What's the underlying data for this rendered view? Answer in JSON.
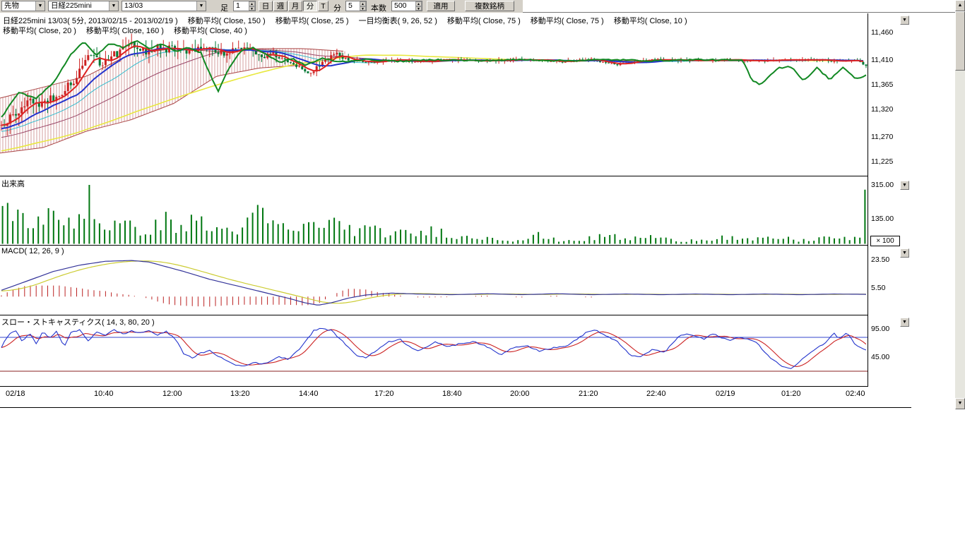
{
  "ui": {
    "toolbar": {
      "market_select": "先物",
      "symbol_select": "日経225mini",
      "contract_select": "13/03",
      "bar_type_label": "足",
      "bar_interval_value": "1",
      "period_buttons": [
        "日",
        "週",
        "月",
        "分",
        "T"
      ],
      "minute_label": "分",
      "minute_value": "5",
      "bars_label": "本数",
      "bars_value": "500",
      "apply_button": "適用",
      "multi_symbol_button": "複数銘柄"
    },
    "legend_line1": [
      "日経225mini 13/03( 5分, 2013/02/15 - 2013/02/19 )",
      "移動平均( Close, 150 )",
      "移動平均( Close, 25 )",
      "一目均衡表( 9, 26, 52 )",
      "移動平均( Close, 75 )",
      "移動平均( Close, 75 )",
      "移動平均( Close, 10 )"
    ],
    "legend_line2": [
      "移動平均( Close, 20 )",
      "移動平均( Close, 160 )",
      "移動平均( Close, 40 )"
    ],
    "price_axis_labels": [
      "11,460",
      "11,410",
      "11,365",
      "11,320",
      "11,270",
      "11,225"
    ],
    "volume_panel": {
      "title": "出来高",
      "axis_labels": [
        "315.00",
        "135.00"
      ],
      "multiplier_badge": "× 100"
    },
    "macd_panel": {
      "title": "MACD( 12, 26, 9 )",
      "axis_labels": [
        "23.50",
        "5.50"
      ]
    },
    "stoch_panel": {
      "title": "スロー・ストキャスティクス( 14, 3, 80, 20 )",
      "axis_labels": [
        "95.00",
        "45.00"
      ]
    },
    "x_axis_labels": [
      "02/18",
      "10:40",
      "12:00",
      "13:20",
      "14:40",
      "17:20",
      "18:40",
      "20:00",
      "21:20",
      "22:40",
      "02/19",
      "01:20",
      "02:40"
    ]
  },
  "icons": {
    "combo_arrow": "▼",
    "spinner_up": "▲",
    "spinner_down": "▼",
    "panel_dropdown_arrow": "▼",
    "scroll_up_arrow": "▲",
    "scroll_down_arrow": "▼"
  },
  "colors": {
    "candle_up": "#cc2222",
    "candle_down": "#007733",
    "ma10": "#dd2222",
    "ma25": "#2233cc",
    "ma40": "#33bbcc",
    "ma75": "#994466",
    "ma150": "#e8e840",
    "chikou": "#118822",
    "cloud": "#aa4444",
    "volume": "#007711",
    "macd": "#333399",
    "macd_signal": "#cccc33",
    "macd_hist": "#bb2222",
    "stoch_k": "#2233cc",
    "stoch_d": "#cc2222",
    "stoch_high_line": "#3344cc",
    "stoch_low_line": "#882222"
  },
  "chart_data": [
    {
      "type": "candlestick",
      "title": "日経225mini 13/03( 5分, 2013/02/15 - 2013/02/19 )",
      "ylim": [
        11200,
        11480
      ],
      "yticks": [
        11460,
        11410,
        11365,
        11320,
        11270,
        11225
      ],
      "x_labels": [
        "02/18",
        "10:40",
        "12:00",
        "13:20",
        "14:40",
        "17:20",
        "18:40",
        "20:00",
        "21:20",
        "22:40",
        "02/19",
        "01:20",
        "02:40"
      ],
      "close_anchors": [
        [
          -0.4,
          11150
        ],
        [
          -0.3,
          11205
        ],
        [
          -0.2,
          11235
        ],
        [
          -0.1,
          11262
        ],
        [
          0,
          11292
        ],
        [
          0.015,
          11310
        ],
        [
          0.03,
          11335
        ],
        [
          0.05,
          11330
        ],
        [
          0.07,
          11352
        ],
        [
          0.085,
          11375
        ],
        [
          0.095,
          11408
        ],
        [
          0.105,
          11428
        ],
        [
          0.115,
          11402
        ],
        [
          0.13,
          11418
        ],
        [
          0.15,
          11438
        ],
        [
          0.165,
          11425
        ],
        [
          0.18,
          11432
        ],
        [
          0.2,
          11428
        ],
        [
          0.215,
          11420
        ],
        [
          0.23,
          11435
        ],
        [
          0.245,
          11428
        ],
        [
          0.26,
          11420
        ],
        [
          0.275,
          11432
        ],
        [
          0.29,
          11428
        ],
        [
          0.3,
          11415
        ],
        [
          0.315,
          11420
        ],
        [
          0.33,
          11408
        ],
        [
          0.345,
          11395
        ],
        [
          0.355,
          11385
        ],
        [
          0.365,
          11398
        ],
        [
          0.375,
          11410
        ],
        [
          0.385,
          11425
        ],
        [
          0.395,
          11412
        ],
        [
          0.41,
          11408
        ],
        [
          0.43,
          11406
        ],
        [
          0.45,
          11410
        ],
        [
          0.48,
          11407
        ],
        [
          0.52,
          11410
        ],
        [
          0.56,
          11408
        ],
        [
          0.6,
          11410
        ],
        [
          0.64,
          11407
        ],
        [
          0.68,
          11410
        ],
        [
          0.71,
          11400
        ],
        [
          0.73,
          11408
        ],
        [
          0.76,
          11410
        ],
        [
          0.8,
          11408
        ],
        [
          0.84,
          11410
        ],
        [
          0.88,
          11408
        ],
        [
          0.92,
          11410
        ],
        [
          0.96,
          11408
        ],
        [
          0.985,
          11410
        ],
        [
          1,
          11396
        ]
      ],
      "volatility_anchors": [
        [
          -0.4,
          8
        ],
        [
          0,
          10
        ],
        [
          0.2,
          9
        ],
        [
          0.3,
          7
        ],
        [
          0.36,
          5
        ],
        [
          0.42,
          3
        ],
        [
          0.55,
          2.4
        ],
        [
          1,
          2.2
        ]
      ],
      "green_line_anchors": [
        [
          0,
          11305
        ],
        [
          0.02,
          11350
        ],
        [
          0.04,
          11340
        ],
        [
          0.06,
          11368
        ],
        [
          0.08,
          11420
        ],
        [
          0.095,
          11442
        ],
        [
          0.11,
          11418
        ],
        [
          0.125,
          11440
        ],
        [
          0.14,
          11432
        ],
        [
          0.155,
          11445
        ],
        [
          0.17,
          11430
        ],
        [
          0.185,
          11440
        ],
        [
          0.2,
          11425
        ],
        [
          0.215,
          11432
        ],
        [
          0.23,
          11422
        ],
        [
          0.24,
          11385
        ],
        [
          0.25,
          11352
        ],
        [
          0.26,
          11388
        ],
        [
          0.275,
          11425
        ],
        [
          0.29,
          11432
        ],
        [
          0.305,
          11420
        ],
        [
          0.32,
          11405
        ],
        [
          0.335,
          11412
        ],
        [
          0.35,
          11400
        ],
        [
          0.37,
          11412
        ],
        [
          0.39,
          11406
        ],
        [
          0.42,
          11410
        ],
        [
          0.46,
          11407
        ],
        [
          0.5,
          11410
        ],
        [
          0.55,
          11408
        ],
        [
          0.6,
          11410
        ],
        [
          0.65,
          11408
        ],
        [
          0.7,
          11410
        ],
        [
          0.75,
          11408
        ],
        [
          0.8,
          11410
        ],
        [
          0.84,
          11409
        ],
        [
          0.855,
          11408
        ],
        [
          0.865,
          11372
        ],
        [
          0.875,
          11365
        ],
        [
          0.885,
          11380
        ],
        [
          0.895,
          11395
        ],
        [
          0.91,
          11397
        ],
        [
          0.925,
          11372
        ],
        [
          0.94,
          11395
        ],
        [
          0.955,
          11374
        ],
        [
          0.97,
          11396
        ],
        [
          0.985,
          11374
        ],
        [
          1,
          11384
        ]
      ],
      "ichimoku_spanA": [
        [
          0,
          11340
        ],
        [
          0.05,
          11360
        ],
        [
          0.1,
          11380
        ],
        [
          0.15,
          11420
        ],
        [
          0.2,
          11430
        ],
        [
          0.25,
          11425
        ],
        [
          0.3,
          11430
        ],
        [
          0.35,
          11430
        ],
        [
          0.4,
          11425
        ]
      ],
      "ichimoku_spanB": [
        [
          0,
          11240
        ],
        [
          0.05,
          11250
        ],
        [
          0.1,
          11280
        ],
        [
          0.15,
          11300
        ],
        [
          0.2,
          11330
        ],
        [
          0.25,
          11380
        ],
        [
          0.3,
          11395
        ],
        [
          0.35,
          11400
        ],
        [
          0.4,
          11420
        ]
      ]
    },
    {
      "type": "bar",
      "title": "出来高",
      "unit_multiplier": "× 100",
      "yticks": [
        315,
        135
      ],
      "volume_anchors": [
        [
          0,
          200
        ],
        [
          0.01,
          260
        ],
        [
          0.02,
          150
        ],
        [
          0.03,
          140
        ],
        [
          0.05,
          170
        ],
        [
          0.07,
          130
        ],
        [
          0.09,
          180
        ],
        [
          0.1,
          330
        ],
        [
          0.11,
          130
        ],
        [
          0.13,
          120
        ],
        [
          0.15,
          100
        ],
        [
          0.17,
          90
        ],
        [
          0.19,
          150
        ],
        [
          0.21,
          100
        ],
        [
          0.225,
          160
        ],
        [
          0.24,
          90
        ],
        [
          0.26,
          90
        ],
        [
          0.28,
          110
        ],
        [
          0.3,
          200
        ],
        [
          0.31,
          120
        ],
        [
          0.33,
          90
        ],
        [
          0.35,
          100
        ],
        [
          0.37,
          150
        ],
        [
          0.39,
          110
        ],
        [
          0.41,
          90
        ],
        [
          0.43,
          80
        ],
        [
          0.45,
          70
        ],
        [
          0.47,
          60
        ],
        [
          0.49,
          80
        ],
        [
          0.51,
          80
        ],
        [
          0.53,
          40
        ],
        [
          0.56,
          45
        ],
        [
          0.58,
          30
        ],
        [
          0.6,
          28
        ],
        [
          0.615,
          60
        ],
        [
          0.63,
          30
        ],
        [
          0.65,
          24
        ],
        [
          0.67,
          28
        ],
        [
          0.7,
          55
        ],
        [
          0.72,
          28
        ],
        [
          0.745,
          50
        ],
        [
          0.77,
          25
        ],
        [
          0.8,
          28
        ],
        [
          0.83,
          45
        ],
        [
          0.86,
          25
        ],
        [
          0.895,
          40
        ],
        [
          0.92,
          22
        ],
        [
          0.955,
          45
        ],
        [
          0.98,
          25
        ],
        [
          1,
          120
        ]
      ]
    },
    {
      "type": "line",
      "title": "MACD( 12, 26, 9 )",
      "yticks": [
        23.5,
        5.5
      ],
      "macd_anchors": [
        [
          -0.1,
          2
        ],
        [
          0,
          4
        ],
        [
          0.03,
          10
        ],
        [
          0.06,
          16
        ],
        [
          0.09,
          20
        ],
        [
          0.12,
          22.5
        ],
        [
          0.15,
          23
        ],
        [
          0.17,
          22
        ],
        [
          0.19,
          19
        ],
        [
          0.21,
          16
        ],
        [
          0.24,
          11
        ],
        [
          0.27,
          7
        ],
        [
          0.3,
          3
        ],
        [
          0.33,
          -1
        ],
        [
          0.35,
          -4
        ],
        [
          0.365,
          -5.5
        ],
        [
          0.38,
          -4
        ],
        [
          0.4,
          -1
        ],
        [
          0.42,
          1
        ],
        [
          0.45,
          2.2
        ],
        [
          0.48,
          1.6
        ],
        [
          0.52,
          1.2
        ],
        [
          0.56,
          1.8
        ],
        [
          0.6,
          1.2
        ],
        [
          0.64,
          1.8
        ],
        [
          0.68,
          1.2
        ],
        [
          0.72,
          1.6
        ],
        [
          0.76,
          1.2
        ],
        [
          0.8,
          1.6
        ],
        [
          0.84,
          1.2
        ],
        [
          0.88,
          1.6
        ],
        [
          0.92,
          1.2
        ],
        [
          0.96,
          1.6
        ],
        [
          1,
          1.4
        ]
      ]
    },
    {
      "type": "line",
      "title": "スロー・ストキャスティクス( 14, 3, 80, 20 )",
      "yticks": [
        95,
        45
      ],
      "hlines": [
        80,
        20
      ],
      "k_anchors": [
        [
          0,
          62
        ],
        [
          0.008,
          85
        ],
        [
          0.016,
          93
        ],
        [
          0.024,
          72
        ],
        [
          0.032,
          88
        ],
        [
          0.04,
          68
        ],
        [
          0.048,
          92
        ],
        [
          0.056,
          78
        ],
        [
          0.064,
          91
        ],
        [
          0.072,
          63
        ],
        [
          0.08,
          88
        ],
        [
          0.09,
          93
        ],
        [
          0.1,
          74
        ],
        [
          0.11,
          90
        ],
        [
          0.12,
          84
        ],
        [
          0.13,
          93
        ],
        [
          0.14,
          86
        ],
        [
          0.15,
          91
        ],
        [
          0.16,
          88
        ],
        [
          0.17,
          92
        ],
        [
          0.18,
          84
        ],
        [
          0.19,
          90
        ],
        [
          0.2,
          78
        ],
        [
          0.21,
          52
        ],
        [
          0.22,
          44
        ],
        [
          0.23,
          52
        ],
        [
          0.24,
          56
        ],
        [
          0.25,
          47
        ],
        [
          0.26,
          38
        ],
        [
          0.27,
          31
        ],
        [
          0.28,
          29
        ],
        [
          0.29,
          36
        ],
        [
          0.3,
          32
        ],
        [
          0.31,
          38
        ],
        [
          0.32,
          46
        ],
        [
          0.33,
          41
        ],
        [
          0.345,
          62
        ],
        [
          0.36,
          92
        ],
        [
          0.37,
          96
        ],
        [
          0.38,
          92
        ],
        [
          0.39,
          78
        ],
        [
          0.4,
          62
        ],
        [
          0.41,
          48
        ],
        [
          0.42,
          44
        ],
        [
          0.43,
          54
        ],
        [
          0.445,
          72
        ],
        [
          0.46,
          76
        ],
        [
          0.47,
          64
        ],
        [
          0.48,
          57
        ],
        [
          0.49,
          63
        ],
        [
          0.5,
          71
        ],
        [
          0.515,
          64
        ],
        [
          0.53,
          69
        ],
        [
          0.545,
          73
        ],
        [
          0.56,
          63
        ],
        [
          0.575,
          49
        ],
        [
          0.59,
          62
        ],
        [
          0.605,
          66
        ],
        [
          0.62,
          56
        ],
        [
          0.635,
          61
        ],
        [
          0.65,
          64
        ],
        [
          0.665,
          78
        ],
        [
          0.675,
          90
        ],
        [
          0.685,
          93
        ],
        [
          0.695,
          84
        ],
        [
          0.71,
          72
        ],
        [
          0.725,
          49
        ],
        [
          0.735,
          44
        ],
        [
          0.75,
          58
        ],
        [
          0.765,
          54
        ],
        [
          0.78,
          81
        ],
        [
          0.79,
          86
        ],
        [
          0.8,
          82
        ],
        [
          0.81,
          77
        ],
        [
          0.82,
          86
        ],
        [
          0.83,
          80
        ],
        [
          0.84,
          74
        ],
        [
          0.85,
          81
        ],
        [
          0.86,
          77
        ],
        [
          0.87,
          71
        ],
        [
          0.88,
          54
        ],
        [
          0.89,
          39
        ],
        [
          0.9,
          29
        ],
        [
          0.91,
          24
        ],
        [
          0.92,
          36
        ],
        [
          0.93,
          51
        ],
        [
          0.94,
          61
        ],
        [
          0.95,
          71
        ],
        [
          0.96,
          87
        ],
        [
          0.965,
          78
        ],
        [
          0.975,
          89
        ],
        [
          0.985,
          66
        ],
        [
          1,
          56
        ]
      ]
    }
  ]
}
